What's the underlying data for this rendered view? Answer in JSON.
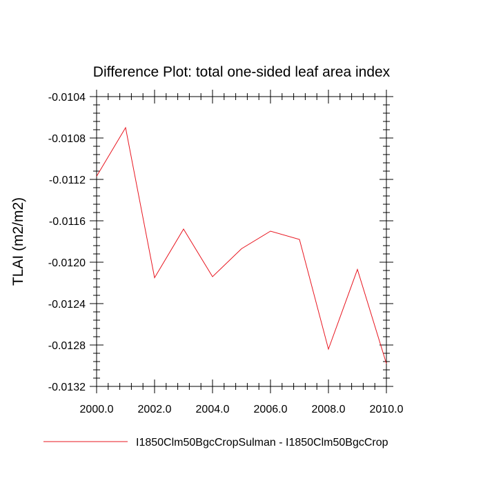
{
  "chart_data": {
    "type": "line",
    "title": "Difference Plot: total one-sided leaf area index",
    "xlabel": "",
    "ylabel": "TLAI  (m2/m2)",
    "xlim": [
      2000,
      2010
    ],
    "ylim": [
      -0.0132,
      -0.0104
    ],
    "x_ticks": [
      2000,
      2002,
      2004,
      2006,
      2008,
      2010
    ],
    "x_tick_labels": [
      "2000.0",
      "2002.0",
      "2004.0",
      "2006.0",
      "2008.0",
      "2010.0"
    ],
    "y_ticks": [
      -0.0104,
      -0.0108,
      -0.0112,
      -0.0116,
      -0.012,
      -0.0124,
      -0.0128,
      -0.0132
    ],
    "y_tick_labels": [
      "-0.0104",
      "-0.0108",
      "-0.0112",
      "-0.0116",
      "-0.0120",
      "-0.0124",
      "-0.0128",
      "-0.0132"
    ],
    "x": [
      2000,
      2001,
      2002,
      2003,
      2004,
      2005,
      2006,
      2007,
      2008,
      2009,
      2010
    ],
    "series": [
      {
        "name": "I1850Clm50BgcCropSulman - I1850Clm50BgcCrop",
        "color": "#e8141e",
        "values": [
          -0.01117,
          -0.0107,
          -0.01215,
          -0.01168,
          -0.01214,
          -0.01187,
          -0.0117,
          -0.01178,
          -0.01284,
          -0.01207,
          -0.01298
        ]
      }
    ],
    "grid": false,
    "legend_position": "bottom"
  }
}
